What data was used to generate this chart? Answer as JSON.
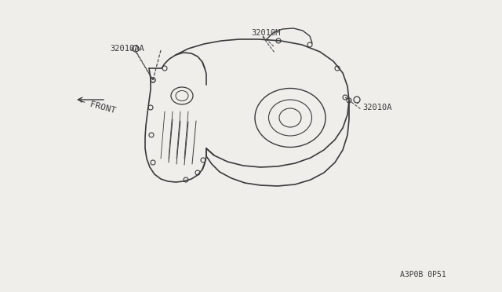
{
  "bg_color": "#f0eeea",
  "line_color": "#3a3a3a",
  "line_width": 1.0,
  "label_32010AA": "32010AA",
  "label_32010M": "32010M",
  "label_32010A": "32010A",
  "label_front": "← FRONT",
  "label_bottom_right": "A3P0B 0P51",
  "font_size_labels": 7.5,
  "font_size_bottom": 7.0,
  "font_size_front": 8.0
}
